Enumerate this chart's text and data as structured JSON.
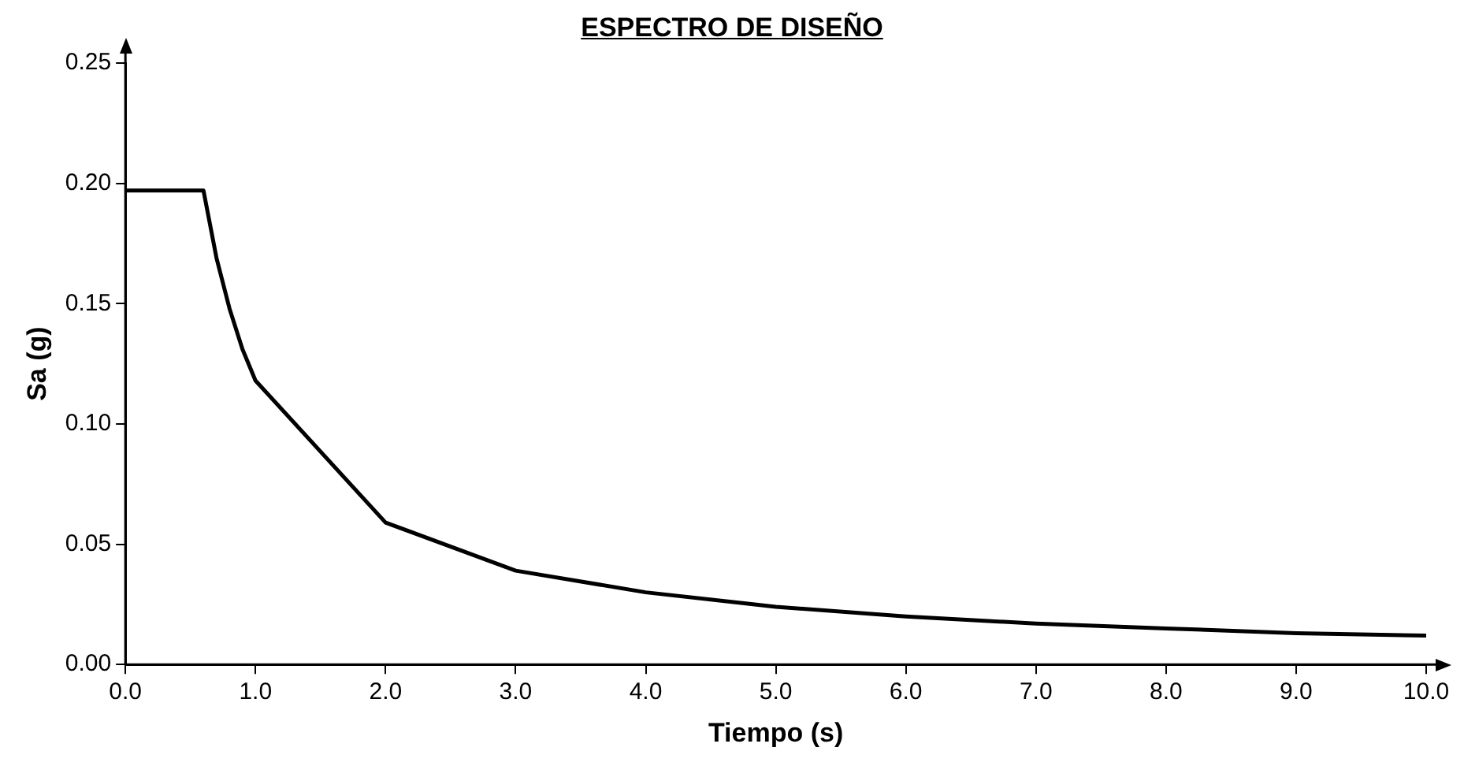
{
  "chart_data": {
    "type": "line",
    "title": "ESPECTRO DE DISEÑO",
    "xlabel": "Tiempo (s)",
    "ylabel": "Sa (g)",
    "x": [
      0,
      0.6,
      0.7,
      0.8,
      0.9,
      1,
      2,
      3,
      4,
      5,
      6,
      7,
      8,
      9,
      10
    ],
    "series": [
      {
        "color": "#000000",
        "values": [
          0.197,
          0.197,
          0.169,
          0.148,
          0.131,
          0.118,
          0.059,
          0.039,
          0.03,
          0.024,
          0.02,
          0.017,
          0.015,
          0.013,
          0.012
        ]
      }
    ],
    "xlim": [
      0,
      10
    ],
    "ylim": [
      0,
      0.25
    ],
    "xticks": [
      {
        "value": 0,
        "label": "0.0"
      },
      {
        "value": 1,
        "label": "1.0"
      },
      {
        "value": 2,
        "label": "2.0"
      },
      {
        "value": 3,
        "label": "3.0"
      },
      {
        "value": 4,
        "label": "4.0"
      },
      {
        "value": 5,
        "label": "5.0"
      },
      {
        "value": 6,
        "label": "6.0"
      },
      {
        "value": 7,
        "label": "7.0"
      },
      {
        "value": 8,
        "label": "8.0"
      },
      {
        "value": 9,
        "label": "9.0"
      },
      {
        "value": 10,
        "label": "10.0"
      }
    ],
    "yticks": [
      {
        "value": 0,
        "label": "0.00"
      },
      {
        "value": 0.05,
        "label": "0.05"
      },
      {
        "value": 0.1,
        "label": "0.10"
      },
      {
        "value": 0.15,
        "label": "0.15"
      },
      {
        "value": 0.2,
        "label": "0.20"
      },
      {
        "value": 0.25,
        "label": "0.25"
      }
    ],
    "grid": false,
    "legend": false,
    "marker": "none",
    "line_style": "solid"
  }
}
